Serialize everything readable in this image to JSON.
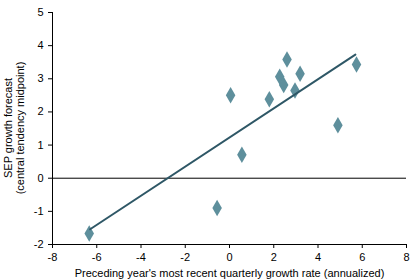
{
  "chart_data": {
    "type": "scatter",
    "xlabel": "Preceding year's most recent quarterly growth rate (annualized)",
    "ylabel": "SEP growth forecast (central tendency midpoint)",
    "xlim": [
      -8,
      8
    ],
    "xticks": [
      -8,
      -6,
      -4,
      -2,
      0,
      2,
      4,
      6,
      8
    ],
    "ylim": [
      -2,
      5
    ],
    "yticks": [
      -2,
      -1,
      0,
      1,
      2,
      3,
      4,
      5
    ],
    "grid": false,
    "series": [
      {
        "type": "scatter",
        "marker": "diamond",
        "color": "#5e8f9c",
        "x": [
          -6.34,
          -0.56,
          0.05,
          0.56,
          1.8,
          2.27,
          2.45,
          2.6,
          2.96,
          3.19,
          4.9,
          5.74
        ],
        "values": [
          -1.67,
          -0.9,
          2.5,
          0.71,
          2.38,
          3.06,
          2.81,
          3.58,
          2.65,
          3.15,
          1.6,
          3.43
        ]
      },
      {
        "type": "line",
        "color": "#2e5766",
        "x": [
          -6.3,
          5.69
        ],
        "values": [
          -1.54,
          3.73
        ]
      }
    ]
  }
}
